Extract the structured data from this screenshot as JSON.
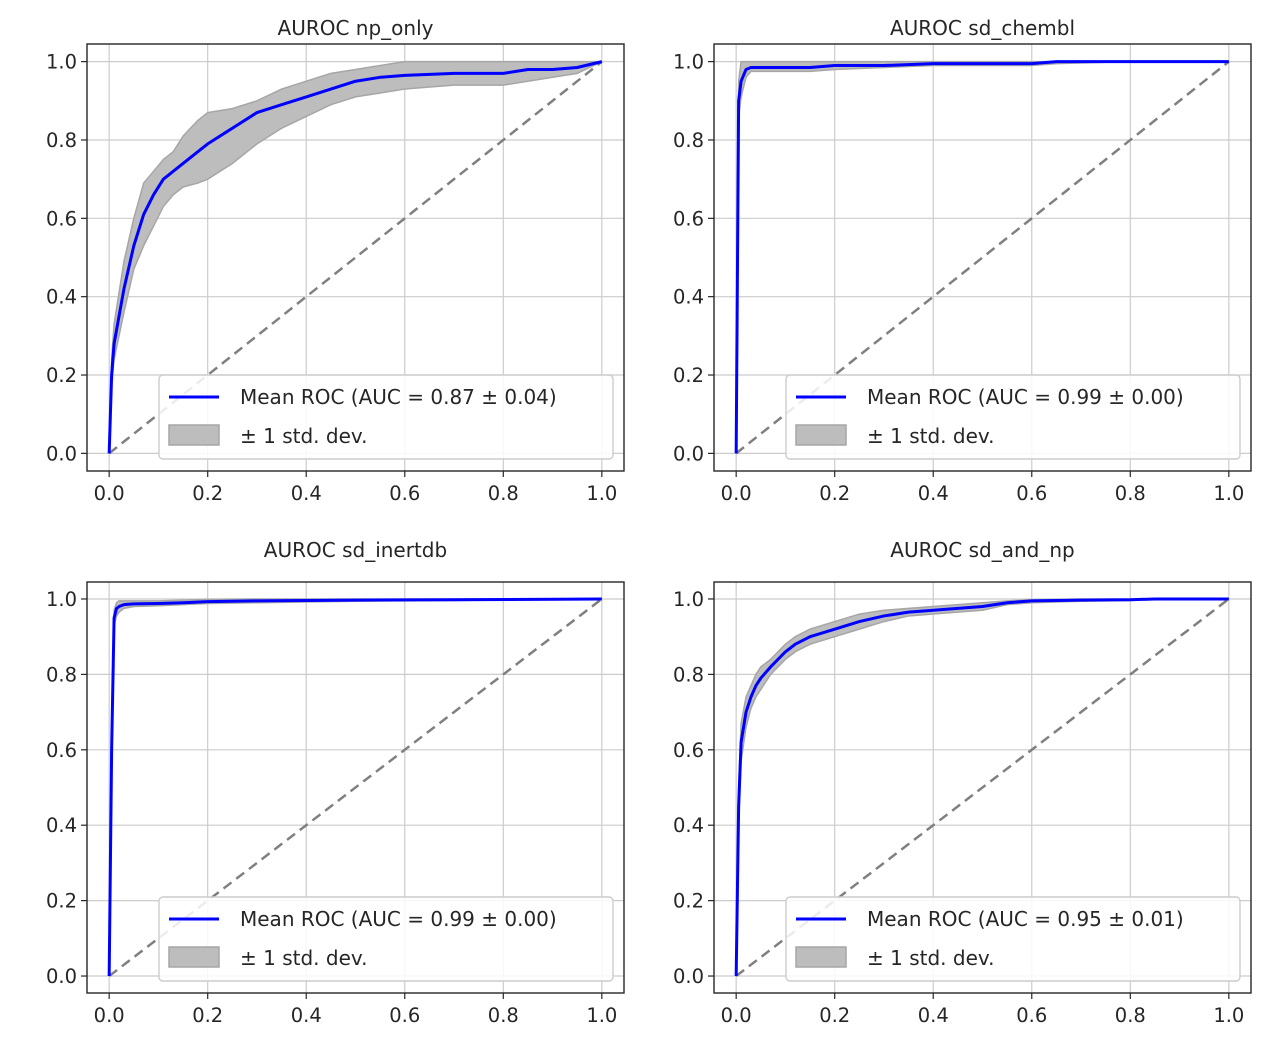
{
  "figure": {
    "colors": {
      "mean_line": "#0000ff",
      "band_fill": "#bdbdbd",
      "band_edge": "#a6a6a6",
      "chance_line": "#808080",
      "grid": "#cccccc",
      "axes": "#262626"
    },
    "legend_placement": "lower right",
    "grid": true
  },
  "chart_data": [
    {
      "type": "line",
      "title": "AUROC np_only",
      "xlabel": "",
      "ylabel": "",
      "xlim": [
        -0.045,
        1.045
      ],
      "ylim": [
        -0.045,
        1.045
      ],
      "xticks": [
        "0.0",
        "0.2",
        "0.4",
        "0.6",
        "0.8",
        "1.0"
      ],
      "yticks": [
        "0.0",
        "0.2",
        "0.4",
        "0.6",
        "0.8",
        "1.0"
      ],
      "legend": [
        "Mean ROC (AUC = 0.87 ± 0.04)",
        "± 1 std. dev."
      ],
      "series": [
        {
          "name": "Mean ROC (AUC = 0.87 ± 0.04)",
          "x": [
            0,
            0.005,
            0.01,
            0.02,
            0.03,
            0.05,
            0.07,
            0.09,
            0.11,
            0.13,
            0.15,
            0.18,
            0.2,
            0.25,
            0.3,
            0.35,
            0.4,
            0.45,
            0.5,
            0.55,
            0.6,
            0.7,
            0.8,
            0.85,
            0.9,
            0.95,
            1.0
          ],
          "y": [
            0,
            0.2,
            0.28,
            0.35,
            0.42,
            0.53,
            0.61,
            0.66,
            0.7,
            0.72,
            0.74,
            0.77,
            0.79,
            0.83,
            0.87,
            0.89,
            0.91,
            0.93,
            0.95,
            0.96,
            0.965,
            0.97,
            0.97,
            0.98,
            0.98,
            0.985,
            1.0
          ]
        },
        {
          "name": "± 1 std. dev.",
          "x": [
            0,
            0.005,
            0.01,
            0.02,
            0.03,
            0.05,
            0.07,
            0.09,
            0.11,
            0.13,
            0.15,
            0.18,
            0.2,
            0.25,
            0.3,
            0.35,
            0.4,
            0.45,
            0.5,
            0.55,
            0.6,
            0.7,
            0.8,
            0.85,
            0.9,
            0.95,
            1.0
          ],
          "upper": [
            0,
            0.24,
            0.33,
            0.41,
            0.49,
            0.6,
            0.69,
            0.72,
            0.75,
            0.77,
            0.81,
            0.85,
            0.87,
            0.88,
            0.9,
            0.93,
            0.95,
            0.97,
            0.98,
            0.99,
            1.0,
            1.0,
            1.0,
            1.0,
            1.0,
            1.0,
            1.0
          ],
          "lower": [
            0,
            0.17,
            0.24,
            0.3,
            0.36,
            0.47,
            0.53,
            0.58,
            0.63,
            0.66,
            0.68,
            0.69,
            0.7,
            0.74,
            0.79,
            0.83,
            0.86,
            0.89,
            0.91,
            0.92,
            0.93,
            0.94,
            0.94,
            0.95,
            0.96,
            0.97,
            1.0
          ]
        },
        {
          "name": "",
          "x": [
            0,
            1
          ],
          "y": [
            0,
            1
          ]
        }
      ]
    },
    {
      "type": "line",
      "title": "AUROC sd_chembl",
      "xlabel": "",
      "ylabel": "",
      "xlim": [
        -0.045,
        1.045
      ],
      "ylim": [
        -0.045,
        1.045
      ],
      "xticks": [
        "0.0",
        "0.2",
        "0.4",
        "0.6",
        "0.8",
        "1.0"
      ],
      "yticks": [
        "0.0",
        "0.2",
        "0.4",
        "0.6",
        "0.8",
        "1.0"
      ],
      "legend": [
        "Mean ROC (AUC = 0.99 ± 0.00)",
        "± 1 std. dev."
      ],
      "series": [
        {
          "name": "Mean ROC (AUC = 0.99 ± 0.00)",
          "x": [
            0,
            0.005,
            0.01,
            0.02,
            0.03,
            0.05,
            0.1,
            0.15,
            0.2,
            0.3,
            0.4,
            0.5,
            0.6,
            0.65,
            0.8,
            1.0
          ],
          "y": [
            0,
            0.9,
            0.95,
            0.98,
            0.985,
            0.985,
            0.985,
            0.985,
            0.99,
            0.99,
            0.995,
            0.995,
            0.995,
            1.0,
            1.0,
            1.0
          ]
        },
        {
          "name": "± 1 std. dev.",
          "x": [
            0,
            0.005,
            0.01,
            0.02,
            0.03,
            0.05,
            0.1,
            0.15,
            0.2,
            0.3,
            0.4,
            0.5,
            0.6,
            0.65,
            0.8,
            1.0
          ],
          "upper": [
            0,
            0.95,
            1.0,
            1.0,
            1.0,
            1.0,
            1.0,
            1.0,
            1.0,
            1.0,
            1.0,
            1.0,
            1.0,
            1.0,
            1.0,
            1.0
          ],
          "lower": [
            0,
            0.86,
            0.91,
            0.96,
            0.975,
            0.975,
            0.975,
            0.975,
            0.98,
            0.985,
            0.99,
            0.99,
            0.99,
            0.995,
            1.0,
            1.0
          ]
        },
        {
          "name": "",
          "x": [
            0,
            1
          ],
          "y": [
            0,
            1
          ]
        }
      ]
    },
    {
      "type": "line",
      "title": "AUROC sd_inertdb",
      "xlabel": "",
      "ylabel": "",
      "xlim": [
        -0.045,
        1.045
      ],
      "ylim": [
        -0.045,
        1.045
      ],
      "xticks": [
        "0.0",
        "0.2",
        "0.4",
        "0.6",
        "0.8",
        "1.0"
      ],
      "yticks": [
        "0.0",
        "0.2",
        "0.4",
        "0.6",
        "0.8",
        "1.0"
      ],
      "legend": [
        "Mean ROC (AUC = 0.99 ± 0.00)",
        "± 1 std. dev."
      ],
      "series": [
        {
          "name": "Mean ROC (AUC = 0.99 ± 0.00)",
          "x": [
            0,
            0.005,
            0.01,
            0.015,
            0.02,
            0.03,
            0.05,
            0.1,
            0.15,
            0.2,
            0.3,
            0.5,
            0.7,
            1.0
          ],
          "y": [
            0,
            0.6,
            0.95,
            0.975,
            0.98,
            0.985,
            0.987,
            0.988,
            0.99,
            0.993,
            0.995,
            0.997,
            0.998,
            1.0
          ]
        },
        {
          "name": "± 1 std. dev.",
          "x": [
            0,
            0.005,
            0.01,
            0.015,
            0.02,
            0.03,
            0.05,
            0.1,
            0.15,
            0.2,
            0.3,
            0.5,
            0.7,
            1.0
          ],
          "upper": [
            0,
            0.62,
            0.97,
            0.99,
            0.995,
            0.995,
            0.995,
            0.995,
            0.997,
            0.999,
            1.0,
            1.0,
            1.0,
            1.0
          ],
          "lower": [
            0,
            0.58,
            0.93,
            0.955,
            0.965,
            0.975,
            0.98,
            0.982,
            0.985,
            0.988,
            0.99,
            0.994,
            0.996,
            1.0
          ]
        },
        {
          "name": "",
          "x": [
            0,
            1
          ],
          "y": [
            0,
            1
          ]
        }
      ]
    },
    {
      "type": "line",
      "title": "AUROC sd_and_np",
      "xlabel": "",
      "ylabel": "",
      "xlim": [
        -0.045,
        1.045
      ],
      "ylim": [
        -0.045,
        1.045
      ],
      "xticks": [
        "0.0",
        "0.2",
        "0.4",
        "0.6",
        "0.8",
        "1.0"
      ],
      "yticks": [
        "0.0",
        "0.2",
        "0.4",
        "0.6",
        "0.8",
        "1.0"
      ],
      "legend": [
        "Mean ROC (AUC = 0.95 ± 0.01)",
        "± 1 std. dev."
      ],
      "series": [
        {
          "name": "Mean ROC (AUC = 0.95 ± 0.01)",
          "x": [
            0,
            0.005,
            0.01,
            0.02,
            0.03,
            0.04,
            0.05,
            0.07,
            0.1,
            0.12,
            0.15,
            0.2,
            0.25,
            0.3,
            0.35,
            0.4,
            0.45,
            0.5,
            0.55,
            0.6,
            0.7,
            0.8,
            0.85,
            1.0
          ],
          "y": [
            0,
            0.45,
            0.62,
            0.7,
            0.74,
            0.77,
            0.79,
            0.82,
            0.86,
            0.88,
            0.9,
            0.92,
            0.94,
            0.955,
            0.965,
            0.97,
            0.975,
            0.98,
            0.99,
            0.995,
            0.997,
            0.998,
            1.0,
            1.0
          ]
        },
        {
          "name": "± 1 std. dev.",
          "x": [
            0,
            0.005,
            0.01,
            0.02,
            0.03,
            0.04,
            0.05,
            0.07,
            0.1,
            0.12,
            0.15,
            0.2,
            0.25,
            0.3,
            0.35,
            0.4,
            0.45,
            0.5,
            0.55,
            0.6,
            0.7,
            0.8,
            0.85,
            1.0
          ],
          "upper": [
            0,
            0.5,
            0.67,
            0.74,
            0.77,
            0.8,
            0.82,
            0.84,
            0.88,
            0.9,
            0.92,
            0.94,
            0.96,
            0.97,
            0.975,
            0.98,
            0.985,
            0.99,
            0.995,
            0.998,
            1.0,
            1.0,
            1.0,
            1.0
          ],
          "lower": [
            0,
            0.4,
            0.57,
            0.66,
            0.71,
            0.74,
            0.76,
            0.8,
            0.84,
            0.86,
            0.88,
            0.9,
            0.92,
            0.94,
            0.955,
            0.96,
            0.965,
            0.97,
            0.985,
            0.99,
            0.994,
            0.996,
            0.999,
            1.0
          ]
        },
        {
          "name": "",
          "x": [
            0,
            1
          ],
          "y": [
            0,
            1
          ]
        }
      ]
    }
  ]
}
